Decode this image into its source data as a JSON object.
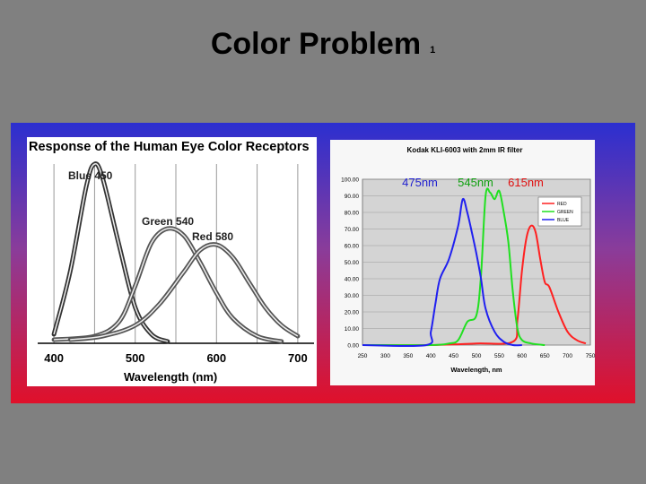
{
  "slide": {
    "title": "Color Problem",
    "slide_number": "1"
  },
  "chart_data": [
    {
      "type": "line",
      "title": "Response of the Human Eye Color Receptors",
      "xlabel": "Wavelength (nm)",
      "x_ticks": [
        "400",
        "500",
        "600",
        "700"
      ],
      "xlim": [
        380,
        720
      ],
      "ylim": [
        0,
        100
      ],
      "grid": true,
      "series": [
        {
          "name": "Blue 450",
          "color": "#333333",
          "x": [
            400,
            420,
            440,
            450,
            460,
            480,
            500,
            520,
            540
          ],
          "y": [
            5,
            40,
            88,
            100,
            92,
            55,
            20,
            5,
            1
          ]
        },
        {
          "name": "Green 540",
          "color": "#555555",
          "x": [
            400,
            450,
            480,
            500,
            520,
            540,
            560,
            580,
            600,
            620,
            650,
            680
          ],
          "y": [
            2,
            4,
            12,
            32,
            56,
            64,
            60,
            45,
            28,
            14,
            4,
            1
          ]
        },
        {
          "name": "Red 580",
          "color": "#555555",
          "x": [
            420,
            460,
            500,
            530,
            560,
            580,
            600,
            620,
            640,
            660,
            680,
            700
          ],
          "y": [
            2,
            4,
            10,
            22,
            40,
            52,
            55,
            48,
            34,
            20,
            10,
            4
          ]
        }
      ]
    },
    {
      "type": "line",
      "title": "Kodak KLI-6003 with 2mm IR filter",
      "xlabel": "Wavelength, nm",
      "x_ticks": [
        "250",
        "300",
        "350",
        "400",
        "450",
        "500",
        "550",
        "600",
        "650",
        "700",
        "750"
      ],
      "y_ticks": [
        "0.00",
        "10.00",
        "20.00",
        "30.00",
        "40.00",
        "50.00",
        "60.00",
        "70.00",
        "80.00",
        "90.00",
        "100.00"
      ],
      "xlim": [
        250,
        750
      ],
      "ylim": [
        0,
        100
      ],
      "grid": true,
      "legend": {
        "position": "top-right",
        "entries": [
          "RED",
          "GREEN",
          "BLUE"
        ]
      },
      "annotations": [
        {
          "text": "475nm",
          "color": "#2020d0",
          "x": 450
        },
        {
          "text": "545nm",
          "color": "#10a010",
          "x": 545
        },
        {
          "text": "615nm",
          "color": "#e01010",
          "x": 620
        }
      ],
      "series": [
        {
          "name": "RED",
          "color": "#ff2020",
          "x": [
            250,
            400,
            500,
            580,
            590,
            600,
            610,
            620,
            630,
            640,
            650,
            660,
            680,
            700,
            720,
            740
          ],
          "y": [
            0,
            0,
            1,
            2,
            15,
            45,
            65,
            72,
            68,
            52,
            38,
            35,
            20,
            8,
            3,
            1
          ]
        },
        {
          "name": "GREEN",
          "color": "#20e020",
          "x": [
            250,
            400,
            440,
            460,
            480,
            500,
            510,
            520,
            530,
            540,
            550,
            560,
            570,
            580,
            590,
            600,
            620,
            650
          ],
          "y": [
            0,
            0,
            1,
            3,
            14,
            18,
            42,
            90,
            92,
            88,
            93,
            80,
            62,
            32,
            10,
            3,
            1,
            0
          ]
        },
        {
          "name": "BLUE",
          "color": "#2020f0",
          "x": [
            250,
            390,
            400,
            410,
            420,
            440,
            460,
            470,
            480,
            490,
            500,
            510,
            520,
            540,
            560,
            580,
            600
          ],
          "y": [
            0,
            0,
            8,
            25,
            40,
            52,
            72,
            88,
            80,
            68,
            55,
            40,
            22,
            8,
            2,
            0,
            0
          ]
        }
      ]
    }
  ]
}
